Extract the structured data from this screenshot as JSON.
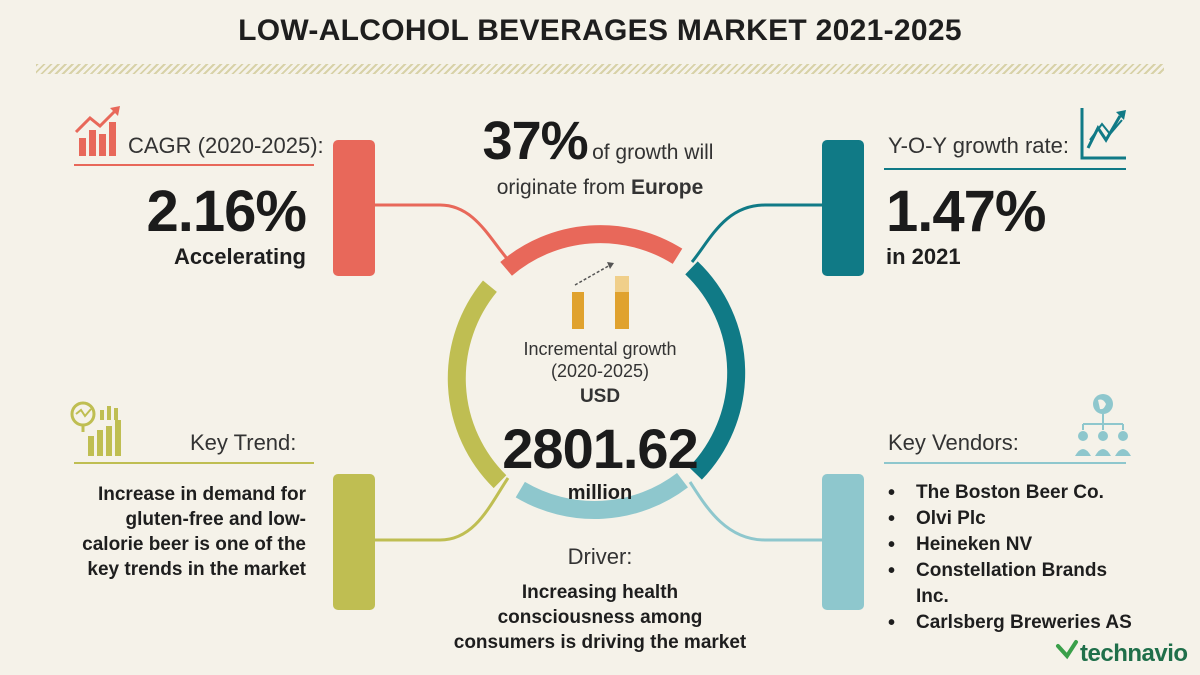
{
  "title": "LOW-ALCOHOL BEVERAGES MARKET 2021-2025",
  "cagr": {
    "label": "CAGR (2020-2025):",
    "value": "2.16%",
    "note": "Accelerating"
  },
  "yoy": {
    "label": "Y-O-Y growth rate:",
    "value": "1.47%",
    "note": "in 2021"
  },
  "europe": {
    "percent": "37%",
    "text1": "of growth will",
    "text2": "originate from",
    "region": "Europe"
  },
  "center": {
    "line1": "Incremental growth",
    "line2": "(2020-2025)",
    "currency": "USD",
    "value": "2801.62",
    "unit": "million"
  },
  "trend": {
    "label": "Key Trend:",
    "lines": [
      "Increase in demand for",
      "gluten-free and low-",
      "calorie beer is one of the",
      "key trends in the market"
    ]
  },
  "driver": {
    "label": "Driver:",
    "lines": [
      "Increasing health",
      "consciousness among",
      "consumers is driving the market"
    ]
  },
  "vendors": {
    "label": "Key Vendors:",
    "items": [
      "The Boston Beer Co.",
      "Olvi Plc",
      "Heineken NV",
      "Constellation Brands Inc.",
      "Carlsberg Breweries AS"
    ]
  },
  "brand": {
    "name": "technavio"
  },
  "colors": {
    "red": "#e8685a",
    "teal": "#107a86",
    "olive": "#bfbe52",
    "lightblue": "#8ec7cd",
    "orange": "#e0a22e",
    "brand_green": "#3aa04a"
  },
  "icons": [
    "growth-chart-icon",
    "trend-arrow-chart-icon",
    "magnifier-chart-icon",
    "vendor-network-icon",
    "bar-growth-icon",
    "technavio-logo-icon"
  ]
}
